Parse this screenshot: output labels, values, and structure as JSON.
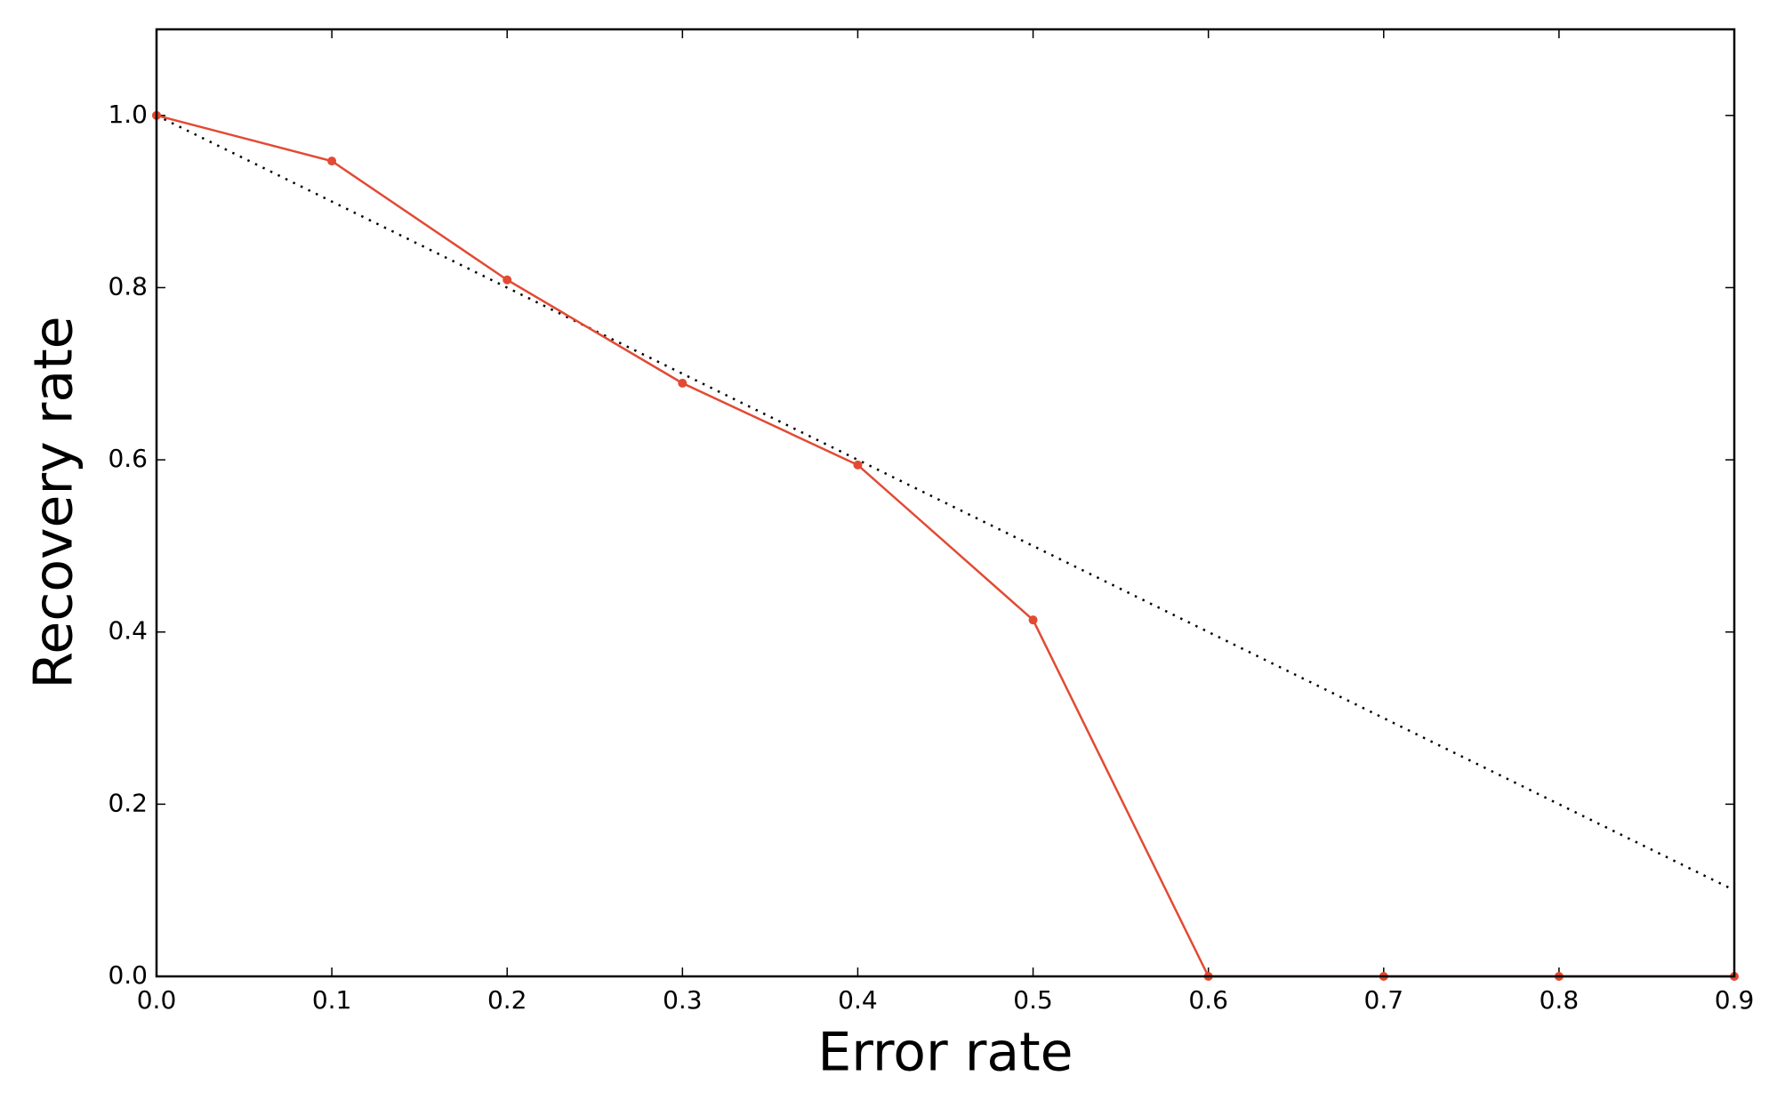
{
  "chart_data": {
    "type": "line",
    "x_label": "Error rate",
    "y_label": "Recovery rate",
    "x": [
      0,
      0.1,
      0.2,
      0.3,
      0.4,
      0.5,
      0.6,
      0.7,
      0.8,
      0.9
    ],
    "series": [
      {
        "color": "#e24a33",
        "linestyle": "solid",
        "marker": true,
        "values": [
          1.0,
          0.947,
          0.809,
          0.689,
          0.594,
          0.414,
          0,
          0,
          0,
          0
        ]
      },
      {
        "color": "#000000",
        "linestyle": "dotted",
        "marker": false,
        "values": [
          1.0,
          0.9,
          0.8,
          0.7,
          0.6,
          0.5,
          0.4,
          0.3,
          0.2,
          0.1
        ]
      }
    ],
    "xlim": [
      0,
      0.9
    ],
    "xticks": [
      {
        "value": 0,
        "label": "0.0"
      },
      0.1,
      0.2,
      0.3,
      0.4,
      0.5,
      0.6,
      0.7,
      0.8,
      0.9
    ],
    "ylim": [
      0,
      1.1
    ],
    "yticks": [
      {
        "value": 0,
        "label": "0.0"
      },
      0.2,
      0.4,
      0.6,
      0.8,
      {
        "value": 1,
        "label": "1.0"
      }
    ],
    "grid": false
  }
}
